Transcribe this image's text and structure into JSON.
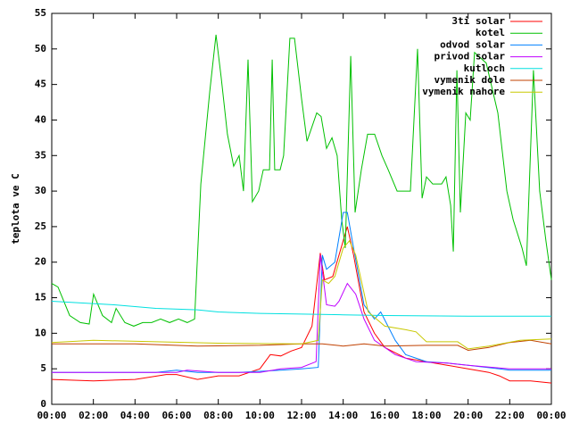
{
  "chart_data": {
    "type": "line",
    "ylabel": "teplota ve C",
    "xlim": [
      0,
      24
    ],
    "xticks": [
      {
        "value": 0,
        "label": "00:00"
      },
      {
        "value": 2,
        "label": "02:00"
      },
      {
        "value": 4,
        "label": "04:00"
      },
      {
        "value": 6,
        "label": "06:00"
      },
      {
        "value": 8,
        "label": "08:00"
      },
      {
        "value": 10,
        "label": "10:00"
      },
      {
        "value": 12,
        "label": "12:00"
      },
      {
        "value": 14,
        "label": "14:00"
      },
      {
        "value": 16,
        "label": "16:00"
      },
      {
        "value": 18,
        "label": "18:00"
      },
      {
        "value": 20,
        "label": "20:00"
      },
      {
        "value": 22,
        "label": "22:00"
      },
      {
        "value": 24,
        "label": "00:00"
      }
    ],
    "ylim": [
      0,
      55
    ],
    "yticks": [
      0,
      5,
      10,
      15,
      20,
      25,
      30,
      35,
      40,
      45,
      50,
      55
    ],
    "legend": "top-right",
    "series": [
      {
        "name": "3ti solar",
        "color": "#ff0000",
        "x": [
          0,
          2,
          4,
          5.5,
          6,
          7,
          8,
          9,
          10,
          10.5,
          11,
          11.5,
          12,
          12.5,
          12.9,
          13.1,
          13.5,
          13.9,
          14.2,
          14.5,
          15,
          15.5,
          16,
          17,
          18,
          19,
          20,
          21,
          21.5,
          22,
          23,
          24
        ],
        "values": [
          3.5,
          3.3,
          3.5,
          4.2,
          4.2,
          3.5,
          4,
          4,
          5,
          7,
          6.8,
          7.5,
          8,
          11,
          21.3,
          17.5,
          18,
          22,
          25,
          21,
          13,
          10,
          8,
          6.5,
          6,
          5.5,
          5,
          4.5,
          4,
          3.3,
          3.3,
          3
        ]
      },
      {
        "name": "kotel",
        "color": "#00c000",
        "x": [
          0,
          0.3,
          0.86,
          1.37,
          1.8,
          2.01,
          2.44,
          2.87,
          3.09,
          3.51,
          3.94,
          4.37,
          4.8,
          5.23,
          5.66,
          6.09,
          6.51,
          6.86,
          7.16,
          7.59,
          7.89,
          8.14,
          8.44,
          8.74,
          9.0,
          9.21,
          9.43,
          9.64,
          9.94,
          10.16,
          10.46,
          10.59,
          10.71,
          10.97,
          11.14,
          11.44,
          11.66,
          12.0,
          12.26,
          12.73,
          12.94,
          13.2,
          13.46,
          13.71,
          13.93,
          14.1,
          14.36,
          14.57,
          14.87,
          15.17,
          15.51,
          15.86,
          16.16,
          16.59,
          17.23,
          17.57,
          17.79,
          18.0,
          18.3,
          18.73,
          18.94,
          19.16,
          19.29,
          19.46,
          19.63,
          19.89,
          20.1,
          20.31,
          20.87,
          21.43,
          21.86,
          22.16,
          22.59,
          22.8,
          23.14,
          23.44,
          23.74,
          24
        ],
        "values": [
          17,
          16.5,
          12.5,
          11.5,
          11.3,
          15.5,
          12.5,
          11.5,
          13.5,
          11.5,
          11,
          11.5,
          11.5,
          12,
          11.5,
          12,
          11.5,
          12,
          31,
          44,
          52,
          46,
          38,
          33.5,
          35,
          30,
          48.5,
          28.5,
          30,
          33,
          33,
          48.5,
          33,
          33,
          35,
          51.5,
          51.5,
          43,
          37,
          41,
          40.5,
          36,
          37.5,
          35,
          26,
          22,
          49,
          27,
          33,
          38,
          38,
          35,
          33,
          30,
          30,
          50,
          29,
          32,
          31,
          31,
          32,
          28,
          21.5,
          47,
          27,
          41,
          40,
          49.5,
          48,
          41,
          30,
          26,
          22,
          19.5,
          47,
          30,
          23,
          17.5
        ]
      },
      {
        "name": "odvod solar",
        "color": "#0080ff",
        "x": [
          0,
          5,
          6,
          7,
          9,
          11,
          12,
          12.8,
          13.0,
          13.2,
          13.6,
          14.0,
          14.2,
          14.5,
          15,
          15.5,
          15.8,
          16.5,
          17,
          18,
          19,
          20,
          21.5,
          22,
          24
        ],
        "values": [
          4.5,
          4.5,
          4.8,
          4.5,
          4.5,
          4.8,
          5,
          5.2,
          21,
          19,
          20,
          27,
          27,
          22,
          14,
          12,
          13,
          9,
          7,
          6,
          5.8,
          5.5,
          5,
          4.8,
          4.8
        ]
      },
      {
        "name": "privod solar",
        "color": "#c000ff",
        "x": [
          0,
          6,
          6.5,
          8,
          10,
          11,
          12,
          12.7,
          12.9,
          13.2,
          13.6,
          13.8,
          14.2,
          14.6,
          15,
          15.5,
          16.5,
          17.5,
          19,
          20,
          22,
          24
        ],
        "values": [
          4.5,
          4.5,
          4.8,
          4.5,
          4.5,
          5,
          5.2,
          6,
          21,
          14,
          13.8,
          14.5,
          17,
          15.5,
          12,
          9,
          7,
          6,
          5.8,
          5.5,
          5,
          5
        ]
      },
      {
        "name": "kutloch",
        "color": "#00e0e0",
        "x": [
          0,
          3,
          5,
          7,
          8,
          10,
          12,
          14,
          16,
          20,
          24
        ],
        "values": [
          14.5,
          14,
          13.5,
          13.3,
          13,
          12.8,
          12.7,
          12.6,
          12.5,
          12.4,
          12.4
        ]
      },
      {
        "name": "vymenik dole",
        "color": "#c04000",
        "x": [
          0,
          4,
          7,
          10,
          12,
          13,
          14,
          15,
          16,
          18,
          19.5,
          20,
          21,
          22,
          23,
          24
        ],
        "values": [
          8.5,
          8.5,
          8.2,
          8.3,
          8.5,
          8.5,
          8.2,
          8.5,
          8.2,
          8.3,
          8.3,
          7.6,
          8,
          8.7,
          9,
          8.5
        ]
      },
      {
        "name": "vymenik nahore",
        "color": "#c8c800",
        "x": [
          0,
          2,
          5,
          8,
          12,
          12.8,
          13.0,
          13.3,
          13.6,
          14.0,
          14.3,
          14.6,
          15.2,
          16,
          17,
          17.5,
          18,
          19.5,
          20,
          21,
          22.5,
          24
        ],
        "values": [
          8.7,
          9,
          8.8,
          8.6,
          8.5,
          9,
          17.5,
          17,
          18,
          22,
          23,
          21,
          13,
          11,
          10.5,
          10.2,
          8.8,
          8.8,
          7.8,
          8.2,
          9,
          9.2
        ]
      }
    ]
  }
}
